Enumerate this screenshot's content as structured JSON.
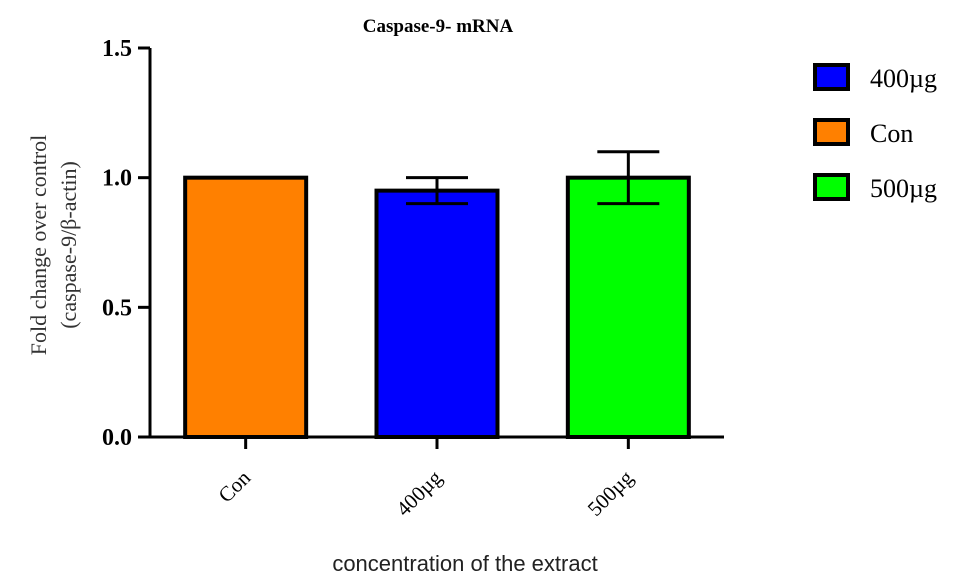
{
  "chart_data": {
    "type": "bar",
    "title": "Caspase-9- mRNA",
    "xlabel": "concentration of the extract",
    "ylabel_line1": "Fold change over control",
    "ylabel_line2": "(caspase-9/β-actin)",
    "ylim": [
      0,
      1.5
    ],
    "yticks": [
      0.0,
      0.5,
      1.0,
      1.5
    ],
    "ytick_labels": [
      "0.0",
      "0.5",
      "1.0",
      "1.5"
    ],
    "categories": [
      "Con",
      "400µg",
      "500µg"
    ],
    "values": [
      1.0,
      0.95,
      1.0
    ],
    "errors": [
      0,
      0.05,
      0.1
    ],
    "colors": [
      "#ff8000",
      "#0000ff",
      "#00ff00"
    ],
    "grid": false,
    "legend": {
      "placement": "top-right",
      "entries": [
        {
          "label": "400µg",
          "color": "#0000ff"
        },
        {
          "label": "Con",
          "color": "#ff8000"
        },
        {
          "label": "500µg",
          "color": "#00ff00"
        }
      ]
    }
  }
}
